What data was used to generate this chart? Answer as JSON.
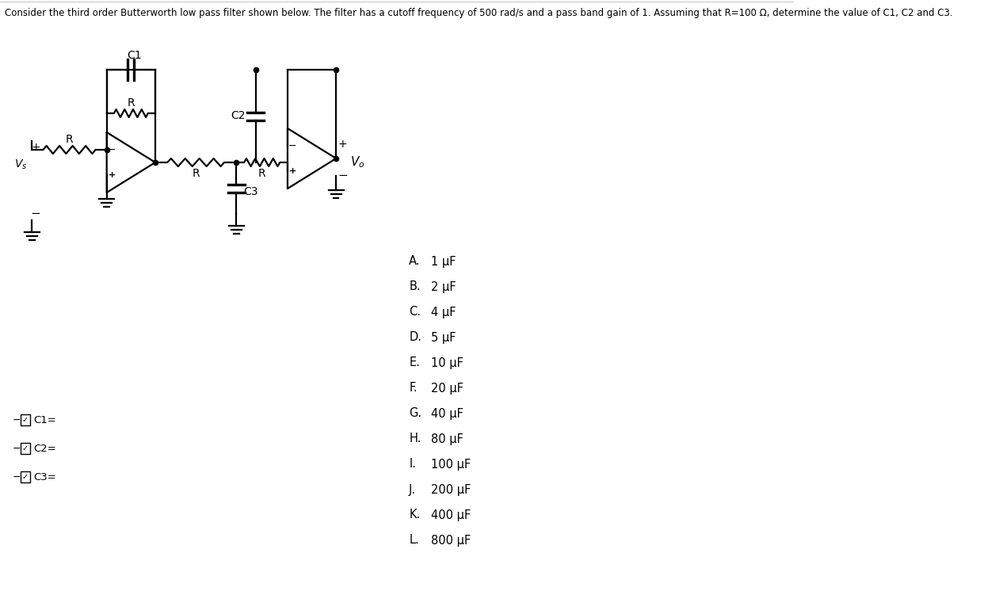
{
  "title_text": "Consider the third order Butterworth low pass filter shown below. The filter has a cutoff frequency of 500 rad/s and a pass band gain of 1. Assuming that R=100 Ω, determine the value of C1, C2 and C3.",
  "choices": [
    [
      "A.",
      "1 μF"
    ],
    [
      "B.",
      "2 μF"
    ],
    [
      "C.",
      "4 μF"
    ],
    [
      "D.",
      "5 μF"
    ],
    [
      "E.",
      "10 μF"
    ],
    [
      "F.",
      "20 μF"
    ],
    [
      "G.",
      "40 μF"
    ],
    [
      "H.",
      "80 μF"
    ],
    [
      "I.",
      "100 μF"
    ],
    [
      "J.",
      "200 μF"
    ],
    [
      "K.",
      "400 μF"
    ],
    [
      "L.",
      "800 μF"
    ]
  ],
  "answer_labels": [
    "C1=",
    "C2=",
    "C3="
  ],
  "bg_color": "#ffffff",
  "line_color": "#000000",
  "text_color": "#000000",
  "font_size_title": 8.5,
  "font_size_choices": 10,
  "font_size_circuit": 10
}
